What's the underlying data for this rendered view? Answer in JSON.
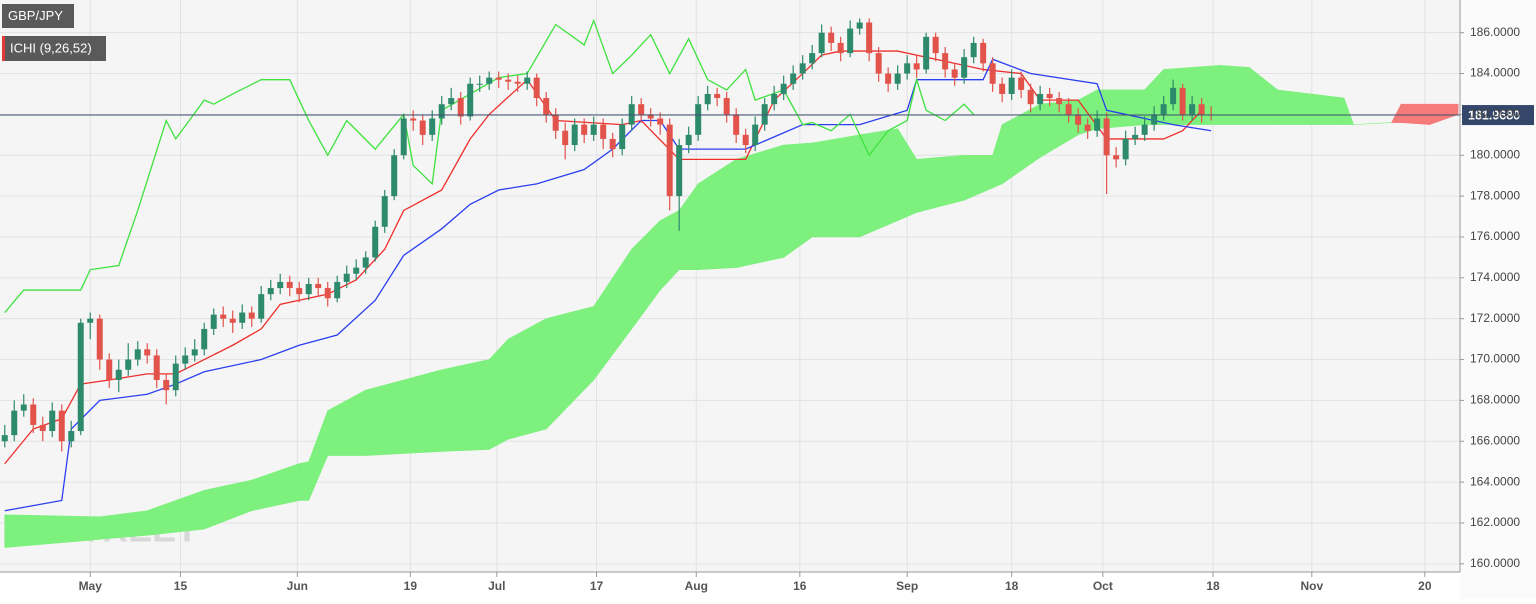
{
  "chart_data": {
    "type": "candlestick",
    "symbol": "GBP/JPY",
    "indicator": "ICHI (9,26,52)",
    "watermark": "FXSTREET",
    "xlim": [
      -0.5,
      153.2
    ],
    "ylim": [
      159.6,
      187.6
    ],
    "grid": true,
    "xticks": [
      {
        "value": 9,
        "label": "May"
      },
      {
        "value": 18.5,
        "label": "15"
      },
      {
        "value": 30.8,
        "label": "Jun"
      },
      {
        "value": 42.7,
        "label": "19"
      },
      {
        "value": 51.8,
        "label": "Jul"
      },
      {
        "value": 62.3,
        "label": "17"
      },
      {
        "value": 72.8,
        "label": "Aug"
      },
      {
        "value": 83.7,
        "label": "16"
      },
      {
        "value": 95,
        "label": "Sep"
      },
      {
        "value": 106,
        "label": "18"
      },
      {
        "value": 115.6,
        "label": "Oct"
      },
      {
        "value": 127.2,
        "label": "18"
      },
      {
        "value": 137.6,
        "label": "Nov"
      },
      {
        "value": 149.5,
        "label": "20"
      }
    ],
    "yticks": [
      {
        "value": 160,
        "label": "160.0000"
      },
      {
        "value": 162,
        "label": "162.0000"
      },
      {
        "value": 164,
        "label": "164.0000"
      },
      {
        "value": 166,
        "label": "166.0000"
      },
      {
        "value": 168,
        "label": "168.0000"
      },
      {
        "value": 170,
        "label": "170.0000"
      },
      {
        "value": 172,
        "label": "172.0000"
      },
      {
        "value": 174,
        "label": "174.0000"
      },
      {
        "value": 176,
        "label": "176.0000"
      },
      {
        "value": 178,
        "label": "178.0000"
      },
      {
        "value": 180,
        "label": "180.0000"
      },
      {
        "value": 182,
        "label": "182.0000"
      },
      {
        "value": 184,
        "label": "184.0000"
      },
      {
        "value": 186,
        "label": "186.0000"
      }
    ],
    "current_price": {
      "value": 181.968,
      "label": "181.9680"
    },
    "candles": {
      "up_color": "#2e8a6c",
      "down_color": "#e2534b",
      "open": [
        166.0,
        166.3,
        167.5,
        167.8,
        166.8,
        166.5,
        167.5,
        166.0,
        166.5,
        171.8,
        172.0,
        170.0,
        169.0,
        169.5,
        170.0,
        170.5,
        170.2,
        169.0,
        168.5,
        169.8,
        170.2,
        170.5,
        171.5,
        172.2,
        172.0,
        171.8,
        172.3,
        172.0,
        173.2,
        173.5,
        173.8,
        173.5,
        173.2,
        173.7,
        173.5,
        173.0,
        173.8,
        174.2,
        174.5,
        175.0,
        176.5,
        178.0,
        180.0,
        181.8,
        181.7,
        181.0,
        181.8,
        182.5,
        182.8,
        181.9,
        183.5,
        183.5,
        183.8,
        183.7,
        183.6,
        183.5,
        183.8,
        182.8,
        182.0,
        181.2,
        180.5,
        181.5,
        181.0,
        181.5,
        180.8,
        180.3,
        181.5,
        182.5,
        182.0,
        181.8,
        181.5,
        178.0,
        180.5,
        181.0,
        182.5,
        183.0,
        182.8,
        182.0,
        181.0,
        180.5,
        181.5,
        182.5,
        183.0,
        183.5,
        184.0,
        184.5,
        185.0,
        186.0,
        185.5,
        185.0,
        186.2,
        186.5,
        185.0,
        184.0,
        183.5,
        184.0,
        184.5,
        184.2,
        185.8,
        185.0,
        184.2,
        183.8,
        184.8,
        185.5,
        184.5,
        183.5,
        183.0,
        183.8,
        183.2,
        182.5,
        183.0,
        182.8,
        182.5,
        182.0,
        181.5,
        181.2,
        181.8,
        180.0,
        179.8,
        180.8,
        181.0,
        181.5,
        182.0,
        182.5,
        183.3,
        182.0,
        182.5,
        182.0
      ],
      "high": [
        166.8,
        168.0,
        168.3,
        168.1,
        167.2,
        167.9,
        167.8,
        167.0,
        172.0,
        172.3,
        172.2,
        170.3,
        170.0,
        170.8,
        170.9,
        170.8,
        170.5,
        169.3,
        170.2,
        170.6,
        171.0,
        171.8,
        172.5,
        172.6,
        172.4,
        172.7,
        172.6,
        173.6,
        173.9,
        174.2,
        174.1,
        173.8,
        174.0,
        174.0,
        173.8,
        174.1,
        174.6,
        174.9,
        175.3,
        176.8,
        178.3,
        180.3,
        182.0,
        182.2,
        182.0,
        182.2,
        182.9,
        183.3,
        183.1,
        183.8,
        183.9,
        184.1,
        184.1,
        184.0,
        183.9,
        184.1,
        184.0,
        183.1,
        182.3,
        181.6,
        181.8,
        181.8,
        181.9,
        181.8,
        181.1,
        181.8,
        182.9,
        182.8,
        182.3,
        182.1,
        181.8,
        180.8,
        181.4,
        182.9,
        183.4,
        183.3,
        183.1,
        182.3,
        181.3,
        181.9,
        182.8,
        183.4,
        183.9,
        184.4,
        184.9,
        185.4,
        186.4,
        186.3,
        185.8,
        186.6,
        186.7,
        186.7,
        185.3,
        184.3,
        184.4,
        184.9,
        184.9,
        186.0,
        186.0,
        185.3,
        184.5,
        185.2,
        185.8,
        185.7,
        184.8,
        183.8,
        184.2,
        184.1,
        183.5,
        183.4,
        183.3,
        183.1,
        182.8,
        182.3,
        181.8,
        182.2,
        182.1,
        180.4,
        181.2,
        181.4,
        181.9,
        182.4,
        182.9,
        183.7,
        183.5,
        182.9,
        182.8,
        182.4
      ],
      "low": [
        165.7,
        166.0,
        167.2,
        166.4,
        166.0,
        166.2,
        165.5,
        165.7,
        166.3,
        171.0,
        169.5,
        168.6,
        168.4,
        169.2,
        169.7,
        169.8,
        168.6,
        167.8,
        168.2,
        169.5,
        169.9,
        170.2,
        171.2,
        171.6,
        171.3,
        171.5,
        171.6,
        171.8,
        172.9,
        173.2,
        173.1,
        172.8,
        172.9,
        173.1,
        172.6,
        172.8,
        173.5,
        173.9,
        174.2,
        174.8,
        176.2,
        177.8,
        179.8,
        181.2,
        180.5,
        180.7,
        181.5,
        182.2,
        181.5,
        181.7,
        183.1,
        183.2,
        183.3,
        183.2,
        183.1,
        183.2,
        182.4,
        181.6,
        180.8,
        179.8,
        180.2,
        180.6,
        180.7,
        180.3,
        179.9,
        180.0,
        181.2,
        181.6,
        181.4,
        181.0,
        177.3,
        176.3,
        180.1,
        180.7,
        182.2,
        182.4,
        181.6,
        180.6,
        180.1,
        180.2,
        181.2,
        182.2,
        182.7,
        183.2,
        183.7,
        184.2,
        184.8,
        185.1,
        184.6,
        184.8,
        185.9,
        184.6,
        183.6,
        183.1,
        183.2,
        183.7,
        183.8,
        184.0,
        184.6,
        183.8,
        183.4,
        183.5,
        184.5,
        184.1,
        183.1,
        182.6,
        182.7,
        182.8,
        182.1,
        182.2,
        182.4,
        182.1,
        181.6,
        181.1,
        180.8,
        180.9,
        178.1,
        179.4,
        179.5,
        180.5,
        180.7,
        181.2,
        181.7,
        182.2,
        181.7,
        181.7,
        181.6,
        181.7
      ],
      "close": [
        166.3,
        167.5,
        167.8,
        166.8,
        166.5,
        167.5,
        166.0,
        166.5,
        171.8,
        172.0,
        170.0,
        169.0,
        169.5,
        170.0,
        170.5,
        170.2,
        169.0,
        168.5,
        169.8,
        170.2,
        170.5,
        171.5,
        172.2,
        172.0,
        171.8,
        172.3,
        172.0,
        173.2,
        173.5,
        173.8,
        173.5,
        173.2,
        173.7,
        173.5,
        173.0,
        173.8,
        174.2,
        174.5,
        175.0,
        176.5,
        178.0,
        180.0,
        181.8,
        181.7,
        181.0,
        181.8,
        182.5,
        182.8,
        181.9,
        183.5,
        183.5,
        183.8,
        183.7,
        183.6,
        183.5,
        183.8,
        182.8,
        182.0,
        181.2,
        180.5,
        181.5,
        181.0,
        181.5,
        180.8,
        180.3,
        181.5,
        182.5,
        182.0,
        181.8,
        181.5,
        178.0,
        180.5,
        181.0,
        182.5,
        183.0,
        182.8,
        182.0,
        181.0,
        180.5,
        181.5,
        182.5,
        183.0,
        183.5,
        184.0,
        184.5,
        185.0,
        186.0,
        185.5,
        185.0,
        186.2,
        186.5,
        185.0,
        184.0,
        183.5,
        184.0,
        184.5,
        184.2,
        185.8,
        185.0,
        184.2,
        183.8,
        184.8,
        185.5,
        184.5,
        183.5,
        183.0,
        183.8,
        183.2,
        182.5,
        183.0,
        182.8,
        182.5,
        182.0,
        181.5,
        181.2,
        181.8,
        180.0,
        179.8,
        180.8,
        181.0,
        181.5,
        182.0,
        182.5,
        183.3,
        182.0,
        182.5,
        182.0,
        181.97
      ]
    },
    "cloud": {
      "up_color": "#7df07d",
      "down_color": "#f57a7a",
      "x": [
        0,
        10,
        15,
        21,
        26,
        31,
        32,
        34,
        38,
        46,
        51,
        53,
        57,
        62,
        66,
        69,
        71,
        73,
        77,
        82,
        85,
        90,
        94,
        96,
        101,
        104,
        105,
        109,
        113,
        115,
        120,
        122,
        128,
        131,
        134,
        141,
        142,
        146,
        147,
        150,
        153
      ],
      "span_a": [
        162.4,
        162.3,
        162.6,
        163.6,
        164.1,
        164.9,
        165.0,
        167.5,
        168.5,
        169.5,
        170.0,
        171.0,
        172.0,
        172.6,
        175.4,
        176.8,
        177.3,
        178.6,
        179.8,
        180.5,
        180.6,
        181.0,
        181.3,
        179.8,
        180.0,
        180.0,
        181.5,
        182.5,
        182.7,
        183.2,
        183.2,
        184.2,
        184.4,
        184.3,
        183.2,
        182.8,
        181.5,
        181.6,
        181.6,
        181.5,
        182.0
      ],
      "span_b": [
        160.8,
        161.2,
        161.4,
        161.7,
        162.6,
        163.1,
        163.1,
        165.3,
        165.3,
        165.5,
        165.6,
        166.1,
        166.6,
        169.0,
        171.5,
        173.4,
        174.4,
        174.4,
        174.5,
        175.0,
        176.0,
        176.0,
        176.8,
        177.2,
        177.8,
        178.4,
        178.6,
        179.9,
        181.0,
        181.3,
        181.5,
        181.5,
        181.5,
        181.5,
        181.5,
        181.5,
        181.5,
        181.6,
        182.5,
        182.5,
        182.5
      ]
    },
    "lines": [
      {
        "color": "#ef2e2a",
        "x": [
          0,
          3,
          6,
          8,
          11,
          15,
          18,
          21,
          24,
          27,
          29,
          34,
          37,
          40,
          42,
          46,
          49,
          51,
          55,
          58,
          65,
          67,
          71,
          78,
          81,
          84,
          86,
          88,
          94,
          98,
          103,
          107,
          109,
          113,
          116,
          122,
          124,
          126
        ],
        "values": [
          164.9,
          166.6,
          167.1,
          168.8,
          169.0,
          169.3,
          169.3,
          170.0,
          170.7,
          171.5,
          172.7,
          173.2,
          173.9,
          175.4,
          177.3,
          178.3,
          180.8,
          182.0,
          183.7,
          181.7,
          181.5,
          181.7,
          179.8,
          179.8,
          182.7,
          184.0,
          184.9,
          185.1,
          185.1,
          184.7,
          184.2,
          184.0,
          182.7,
          182.7,
          180.8,
          180.8,
          181.2,
          182.2
        ]
      },
      {
        "color": "#2b3ff0",
        "x": [
          0,
          6,
          7,
          10,
          15,
          18,
          21,
          27,
          31,
          35,
          39,
          42,
          46,
          49,
          52,
          56,
          61,
          64,
          67,
          69,
          71,
          78,
          84,
          90,
          95,
          96,
          103,
          104,
          108,
          115,
          116,
          123,
          127
        ],
        "values": [
          162.6,
          163.1,
          166.6,
          168.0,
          168.3,
          168.8,
          169.4,
          170.0,
          170.7,
          171.2,
          172.9,
          175.1,
          176.4,
          177.6,
          178.3,
          178.6,
          179.3,
          180.3,
          181.7,
          181.7,
          180.3,
          180.3,
          181.5,
          181.5,
          182.2,
          183.7,
          183.7,
          184.7,
          184.0,
          183.5,
          182.2,
          181.5,
          181.2
        ]
      },
      {
        "color": "#3ee23e",
        "x": [
          0,
          2,
          5,
          8,
          9,
          12,
          14,
          17,
          18,
          21,
          22,
          24,
          27,
          30,
          32,
          34,
          36,
          39,
          42,
          43,
          45,
          46,
          49,
          52,
          55,
          58,
          61,
          62,
          64,
          66,
          68,
          70,
          72,
          74,
          76,
          78,
          79,
          82,
          84,
          85,
          87,
          89,
          91,
          93,
          95,
          96,
          97,
          99,
          101,
          102
        ],
        "values": [
          172.3,
          173.4,
          173.4,
          173.4,
          174.4,
          174.6,
          177.3,
          181.7,
          180.8,
          182.7,
          182.5,
          183.0,
          183.7,
          183.7,
          181.7,
          180.0,
          181.7,
          180.3,
          182.0,
          179.5,
          178.6,
          182.2,
          183.0,
          183.8,
          184.0,
          186.4,
          185.4,
          186.6,
          184.0,
          184.9,
          185.9,
          184.0,
          185.7,
          183.7,
          183.2,
          184.2,
          182.7,
          183.2,
          181.5,
          181.6,
          181.2,
          182.0,
          180.0,
          181.2,
          181.7,
          183.7,
          182.2,
          181.7,
          182.5,
          182.0
        ]
      }
    ]
  }
}
